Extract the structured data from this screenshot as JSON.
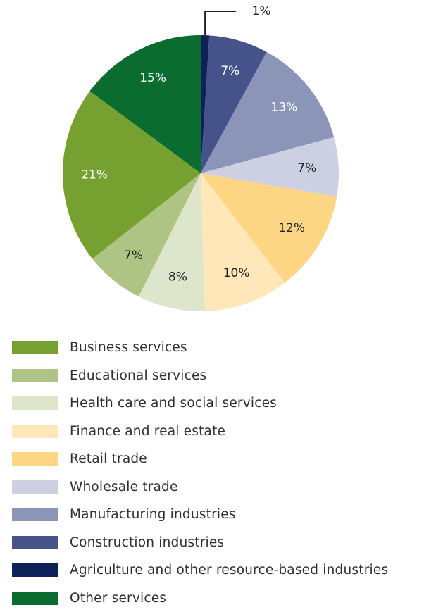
{
  "chart_data": {
    "type": "pie",
    "slices": [
      {
        "name": "Agriculture and other resource-based industries",
        "value": 1,
        "label": "1%",
        "color": "#0e2159",
        "label_color": "#222222"
      },
      {
        "name": "Construction industries",
        "value": 7,
        "label": "7%",
        "color": "#46538a",
        "label_color": "#ffffff"
      },
      {
        "name": "Manufacturing industries",
        "value": 13,
        "label": "13%",
        "color": "#8b95b8",
        "label_color": "#ffffff"
      },
      {
        "name": "Wholesale trade",
        "value": 7,
        "label": "7%",
        "color": "#cdd0e3",
        "label_color": "#222222"
      },
      {
        "name": "Retail trade",
        "value": 12,
        "label": "12%",
        "color": "#fdd684",
        "label_color": "#222222"
      },
      {
        "name": "Finance and real estate",
        "value": 10,
        "label": "10%",
        "color": "#fee7b9",
        "label_color": "#222222"
      },
      {
        "name": "Health care and social services",
        "value": 8,
        "label": "8%",
        "color": "#dde6cb",
        "label_color": "#222222"
      },
      {
        "name": "Educational services",
        "value": 7,
        "label": "7%",
        "color": "#adc485",
        "label_color": "#222222"
      },
      {
        "name": "Business services",
        "value": 21,
        "label": "21%",
        "color": "#76a130",
        "label_color": "#ffffff"
      },
      {
        "name": "Other services",
        "value": 15,
        "label": "15%",
        "color": "#0a6c2e",
        "label_color": "#ffffff"
      }
    ],
    "legend_order": [
      "Business services",
      "Educational services",
      "Health care and social services",
      "Finance and real estate",
      "Retail trade",
      "Wholesale trade",
      "Manufacturing industries",
      "Construction industries",
      "Agriculture and other resource-based industries",
      "Other services"
    ],
    "legend_position": "bottom-left"
  },
  "legend": {
    "items": [
      {
        "label": "Business services",
        "color": "#76a130"
      },
      {
        "label": "Educational services",
        "color": "#adc485"
      },
      {
        "label": "Health care and social services",
        "color": "#dde6cb"
      },
      {
        "label": "Finance and real estate",
        "color": "#fee7b9"
      },
      {
        "label": "Retail trade",
        "color": "#fdd684"
      },
      {
        "label": "Wholesale trade",
        "color": "#cdd0e3"
      },
      {
        "label": "Manufacturing industries",
        "color": "#8b95b8"
      },
      {
        "label": "Construction industries",
        "color": "#46538a"
      },
      {
        "label": "Agriculture and other resource-based industries",
        "color": "#0e2159"
      },
      {
        "label": "Other services",
        "color": "#0a6c2e"
      }
    ]
  }
}
